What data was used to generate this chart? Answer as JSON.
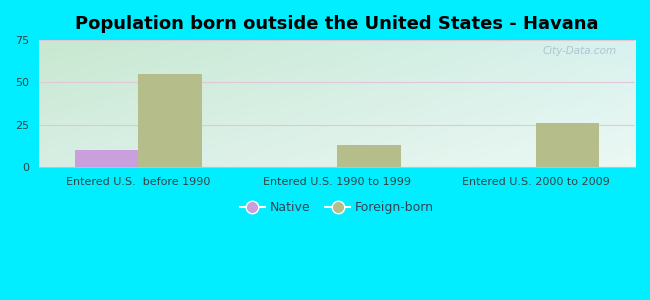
{
  "title": "Population born outside the United States - Havana",
  "categories": [
    "Entered U.S.  before 1990",
    "Entered U.S. 1990 to 1999",
    "Entered U.S. 2000 to 2009"
  ],
  "native_values": [
    10,
    0,
    0
  ],
  "foreign_values": [
    55,
    13,
    26
  ],
  "native_color": "#c9a0dc",
  "foreign_color": "#b5bd8a",
  "ylim": [
    0,
    75
  ],
  "yticks": [
    0,
    25,
    50,
    75
  ],
  "background_outer": "#00eeff",
  "grad_top_left": "#c8e8d0",
  "grad_bottom_right": "#e8f8f0",
  "grid_color": "#e0c8d8",
  "bar_width": 0.32,
  "watermark": "City-Data.com",
  "title_fontsize": 13,
  "tick_fontsize": 8,
  "legend_fontsize": 9
}
